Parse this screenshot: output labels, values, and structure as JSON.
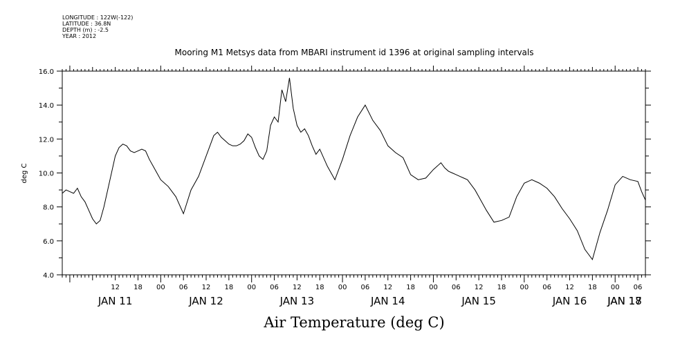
{
  "header": {
    "longitude": "LONGITUDE : 122W(-122)",
    "latitude": "LATITUDE : 36.8N",
    "depth": "DEPTH (m) : -2.5",
    "year": "YEAR : 2012"
  },
  "chart_data": {
    "type": "line",
    "title": "Mooring M1 Metsys data from MBARI instrument id 1396 at original sampling intervals",
    "xlabel": "Air Temperature (deg C)",
    "ylabel": "deg C",
    "ylim": [
      4.0,
      16.0
    ],
    "y_ticks": [
      "4.0",
      "6.0",
      "8.0",
      "10.0",
      "12.0",
      "14.0",
      "16.0"
    ],
    "x_unit": "hours since JAN 11 00",
    "xlim": [
      -2,
      152
    ],
    "hour_ticks": [
      "12",
      "18",
      "00",
      "06",
      "12",
      "18",
      "00",
      "06",
      "12",
      "18",
      "00",
      "06",
      "12",
      "18",
      "00",
      "06",
      "12",
      "18",
      "00",
      "06",
      "12",
      "18",
      "00",
      "06",
      "12",
      "18",
      "00",
      "06"
    ],
    "day_labels": [
      "JAN 11",
      "JAN 12",
      "JAN 13",
      "JAN 14",
      "JAN 15",
      "JAN 16",
      "JAN 17",
      "JAN 18"
    ],
    "grid": false,
    "series": [
      {
        "x": [
          -2,
          -1,
          0,
          1,
          2,
          3,
          4,
          5,
          6,
          7,
          8,
          9,
          10,
          11,
          12,
          13,
          14,
          15,
          16,
          17,
          18,
          19,
          20,
          21,
          22,
          23,
          24,
          26,
          28,
          30,
          32,
          34,
          36,
          37,
          38,
          39,
          40,
          41,
          42,
          43,
          44,
          45,
          46,
          47,
          48,
          49,
          50,
          51,
          52,
          53,
          54,
          55,
          56,
          57,
          58,
          59,
          60,
          61,
          62,
          63,
          64,
          65,
          66,
          68,
          70,
          72,
          74,
          76,
          78,
          80,
          82,
          84,
          86,
          88,
          90,
          92,
          94,
          96,
          98,
          99,
          100,
          101,
          102,
          103,
          104,
          105,
          106,
          107,
          108,
          110,
          112,
          114,
          116,
          118,
          120,
          122,
          124,
          126,
          128,
          130,
          132,
          134,
          136,
          138,
          140,
          142,
          144,
          146,
          148,
          150,
          151,
          152
        ],
        "y": [
          8.8,
          9.0,
          8.9,
          8.8,
          9.1,
          8.6,
          8.3,
          7.8,
          7.3,
          7.0,
          7.2,
          8.0,
          9.0,
          10.0,
          11.0,
          11.5,
          11.7,
          11.6,
          11.3,
          11.2,
          11.3,
          11.4,
          11.3,
          10.8,
          10.4,
          10.0,
          9.6,
          9.2,
          8.6,
          7.6,
          9.0,
          9.8,
          11.0,
          11.6,
          12.2,
          12.4,
          12.1,
          11.9,
          11.7,
          11.6,
          11.6,
          11.7,
          11.9,
          12.3,
          12.1,
          11.5,
          11.0,
          10.8,
          11.3,
          12.8,
          13.3,
          13.0,
          14.9,
          14.2,
          15.6,
          13.8,
          12.8,
          12.4,
          12.6,
          12.2,
          11.6,
          11.1,
          11.4,
          10.4,
          9.6,
          10.8,
          12.2,
          13.3,
          14.0,
          13.1,
          12.5,
          11.6,
          11.2,
          10.9,
          9.9,
          9.6,
          9.7,
          10.2,
          10.6,
          10.3,
          10.1,
          10.0,
          9.9,
          9.8,
          9.7,
          9.6,
          9.3,
          9.0,
          8.6,
          7.8,
          7.1,
          7.2,
          7.4,
          8.6,
          9.4,
          9.6,
          9.4,
          9.1,
          8.6,
          7.9,
          7.3,
          6.6,
          5.5,
          4.9,
          6.5,
          7.8,
          9.3,
          9.8,
          9.6,
          9.5,
          8.9,
          8.4
        ]
      }
    ]
  }
}
